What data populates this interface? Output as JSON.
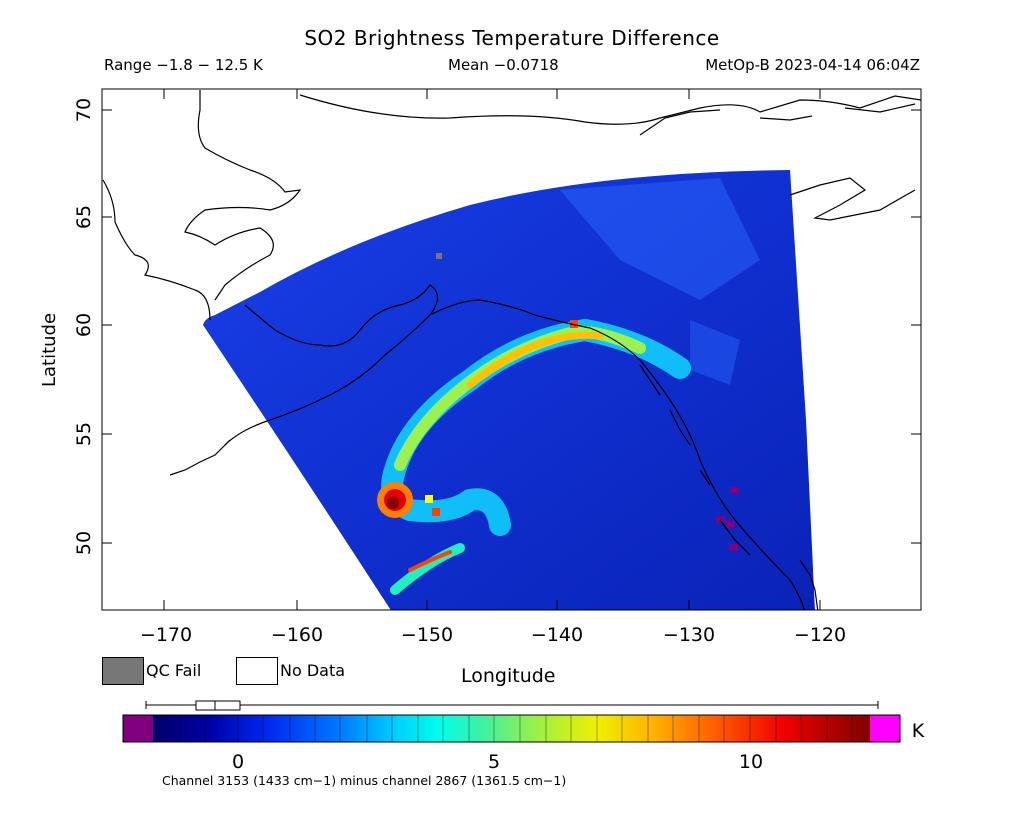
{
  "header": {
    "title": "SO2 Brightness Temperature Difference",
    "range": "Range −1.8 − 12.5 K",
    "mean": "Mean −0.0718",
    "satellite_time": "MetOp-B 2023-04-14 06:04Z"
  },
  "map": {
    "xlabel": "Longitude",
    "ylabel": "Latitude",
    "lon_ticks": [
      "−170",
      "−160",
      "−150",
      "−140",
      "−130",
      "−120"
    ],
    "lat_ticks": [
      "70",
      "65",
      "60",
      "55",
      "50"
    ],
    "lon_range": [
      -174.3,
      -115.3
    ],
    "lat_range": [
      46.5,
      71.0
    ]
  },
  "legend": {
    "qc_fail": "QC Fail",
    "no_data": "No Data",
    "qc_color": "#777777"
  },
  "colorbar": {
    "unit": "K",
    "ticks": [
      "0",
      "5",
      "10"
    ],
    "tick_values": [
      0,
      5,
      10
    ],
    "range": [
      -1.8,
      12.5
    ],
    "under_color": "#800080",
    "over_color": "#ff00ff"
  },
  "footer": {
    "channel": "Channel 3153 (1433 cm−1) minus channel 2867 (1361.5 cm−1)"
  }
}
